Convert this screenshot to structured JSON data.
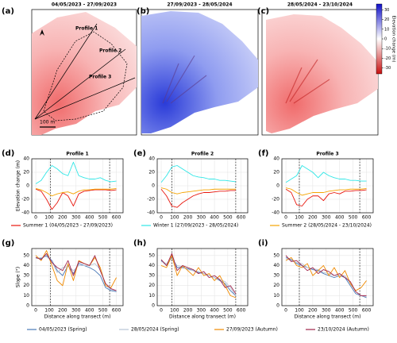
{
  "maps": [
    {
      "panel": "(a)",
      "title": "04/05/2023 - 27/09/2023",
      "labels": [
        "Profile 1",
        "Profile 2",
        "Profile 3"
      ],
      "scale": "100 m"
    },
    {
      "panel": "(b)",
      "title": "27/09/2023 - 28/05/2024"
    },
    {
      "panel": "(c)",
      "title": "28/05/2024 - 23/10/2024"
    }
  ],
  "colorbar": {
    "label": "Elevation change (m)",
    "lim": [
      -36,
      36
    ],
    "ticks": [
      30,
      20,
      10,
      0,
      -10,
      -20,
      -30
    ]
  },
  "chart_data": [
    {
      "type": "line",
      "panel": "(d)",
      "title": "Profile 1",
      "ylabel": "Elevation change (m)",
      "xlim": [
        -30,
        650
      ],
      "ylim": [
        -40,
        40
      ],
      "xticks": [
        0,
        100,
        200,
        300,
        400,
        500,
        600
      ],
      "yticks": [
        -40,
        -20,
        0,
        20,
        40
      ],
      "grid": true,
      "legend": "below",
      "vlines": [
        110,
        550
      ],
      "x": [
        0,
        40,
        80,
        120,
        160,
        200,
        240,
        280,
        320,
        360,
        400,
        440,
        480,
        520,
        560,
        600
      ],
      "series": [
        {
          "name": "Summer 1 (04/05/2023 - 27/09/2023)",
          "color": "#e8160c",
          "values": [
            -5,
            -8,
            -20,
            -35,
            -25,
            -10,
            -15,
            -30,
            -12,
            -8,
            -7,
            -6,
            -6,
            -6,
            -7,
            -6
          ]
        },
        {
          "name": "Winter 1 (27/09/2023 - 28/05/2024)",
          "color": "#2ee6e6",
          "values": [
            3,
            8,
            20,
            30,
            25,
            18,
            15,
            35,
            15,
            12,
            10,
            10,
            12,
            8,
            6,
            7
          ]
        },
        {
          "name": "Summer 2 (28/05/2024 - 23/10/2024)",
          "color": "#f5a400",
          "values": [
            -4,
            -6,
            -10,
            -15,
            -12,
            -10,
            -9,
            -12,
            -8,
            -6,
            -6,
            -5,
            -5,
            -5,
            -5,
            -4
          ]
        }
      ]
    },
    {
      "type": "line",
      "panel": "(e)",
      "title": "Profile 2",
      "xlim": [
        -30,
        650
      ],
      "ylim": [
        -40,
        40
      ],
      "xticks": [
        0,
        100,
        200,
        300,
        400,
        500,
        600
      ],
      "yticks": [
        -40,
        -20,
        0,
        20,
        40
      ],
      "grid": true,
      "vlines": [
        80,
        560
      ],
      "x": [
        0,
        40,
        80,
        120,
        160,
        200,
        240,
        280,
        320,
        360,
        400,
        440,
        480,
        520,
        560,
        600
      ],
      "series": [
        {
          "color": "#e8160c",
          "values": [
            -5,
            -15,
            -30,
            -32,
            -25,
            -20,
            -15,
            -12,
            -10,
            -10,
            -9,
            -8,
            -8,
            -7,
            -7,
            null
          ]
        },
        {
          "color": "#2ee6e6",
          "values": [
            5,
            15,
            28,
            30,
            25,
            20,
            15,
            13,
            12,
            10,
            10,
            8,
            8,
            7,
            6,
            null
          ]
        },
        {
          "color": "#f5a400",
          "values": [
            -3,
            -5,
            -10,
            -12,
            -10,
            -9,
            -8,
            -7,
            -6,
            -6,
            -5,
            -5,
            -5,
            -5,
            -5,
            null
          ]
        }
      ]
    },
    {
      "type": "line",
      "panel": "(f)",
      "title": "Profile 3",
      "xlim": [
        -30,
        650
      ],
      "ylim": [
        -40,
        40
      ],
      "xticks": [
        0,
        100,
        200,
        300,
        400,
        500,
        600
      ],
      "yticks": [
        -40,
        -20,
        0,
        20,
        40
      ],
      "grid": true,
      "vlines": [
        100,
        550
      ],
      "x": [
        0,
        40,
        80,
        120,
        160,
        200,
        240,
        280,
        320,
        360,
        400,
        440,
        480,
        520,
        560,
        600
      ],
      "series": [
        {
          "color": "#e8160c",
          "values": [
            -5,
            -10,
            -28,
            -30,
            -20,
            -15,
            -15,
            -22,
            -12,
            -10,
            -12,
            -8,
            -8,
            -7,
            -7,
            -6
          ]
        },
        {
          "color": "#2ee6e6",
          "values": [
            5,
            10,
            15,
            30,
            25,
            20,
            12,
            20,
            15,
            12,
            10,
            10,
            8,
            8,
            7,
            7
          ]
        },
        {
          "color": "#f5a400",
          "values": [
            -3,
            -5,
            -10,
            -14,
            -12,
            -10,
            -10,
            -10,
            -8,
            -7,
            -6,
            -6,
            -5,
            -5,
            -5,
            -4
          ]
        }
      ]
    },
    {
      "type": "line",
      "panel": "(g)",
      "ylabel": "Slope (°)",
      "xlabel": "Distance along transect (m)",
      "xlim": [
        -30,
        650
      ],
      "ylim": [
        0,
        57
      ],
      "xticks": [
        0,
        100,
        200,
        300,
        400,
        500,
        600
      ],
      "yticks": [
        0,
        10,
        20,
        30,
        40,
        50
      ],
      "grid": true,
      "legend": "below",
      "vlines": [
        110,
        550
      ],
      "x": [
        0,
        40,
        80,
        120,
        160,
        200,
        240,
        280,
        320,
        360,
        400,
        440,
        480,
        520,
        560,
        600
      ],
      "series": [
        {
          "name": "04/05/2023 (Spring)",
          "color": "#4a7ab8",
          "values": [
            48,
            47,
            50,
            45,
            35,
            30,
            40,
            32,
            42,
            40,
            38,
            35,
            30,
            18,
            15,
            14
          ]
        },
        {
          "name": "28/05/2024 (Spring)",
          "color": "#b8c4d6",
          "values": [
            47,
            48,
            49,
            44,
            33,
            38,
            39,
            35,
            40,
            40,
            40,
            42,
            36,
            20,
            16,
            15
          ]
        },
        {
          "name": "27/09/2023 (Autumn)",
          "color": "#f08a00",
          "values": [
            50,
            45,
            55,
            40,
            25,
            20,
            42,
            25,
            45,
            42,
            40,
            48,
            38,
            20,
            18,
            28
          ]
        },
        {
          "name": "23/10/2024 (Autumn)",
          "color": "#a0234a",
          "values": [
            48,
            46,
            52,
            43,
            38,
            35,
            45,
            30,
            44,
            42,
            40,
            50,
            35,
            22,
            17,
            15
          ]
        }
      ]
    },
    {
      "type": "line",
      "panel": "(h)",
      "xlabel": "Distance along transect (m)",
      "xlim": [
        -30,
        650
      ],
      "ylim": [
        0,
        57
      ],
      "xticks": [
        0,
        100,
        200,
        300,
        400,
        500,
        600
      ],
      "yticks": [
        0,
        10,
        20,
        30,
        40,
        50
      ],
      "grid": true,
      "vlines": [
        80,
        560
      ],
      "x": [
        0,
        40,
        80,
        120,
        160,
        200,
        240,
        280,
        320,
        360,
        400,
        440,
        480,
        520,
        560,
        600
      ],
      "series": [
        {
          "color": "#4a7ab8",
          "values": [
            45,
            40,
            48,
            38,
            38,
            37,
            35,
            33,
            32,
            30,
            28,
            25,
            22,
            15,
            10,
            null
          ]
        },
        {
          "color": "#b8c4d6",
          "values": [
            44,
            42,
            47,
            40,
            39,
            36,
            35,
            34,
            32,
            30,
            28,
            26,
            24,
            18,
            10,
            null
          ]
        },
        {
          "color": "#f08a00",
          "values": [
            40,
            38,
            50,
            30,
            40,
            35,
            30,
            38,
            30,
            32,
            25,
            30,
            20,
            10,
            8,
            null
          ]
        },
        {
          "color": "#a0234a",
          "values": [
            46,
            40,
            52,
            35,
            40,
            38,
            36,
            32,
            34,
            28,
            30,
            26,
            18,
            20,
            12,
            null
          ]
        }
      ]
    },
    {
      "type": "line",
      "panel": "(i)",
      "xlabel": "Distance along transect (m)",
      "xlim": [
        -30,
        650
      ],
      "ylim": [
        0,
        57
      ],
      "xticks": [
        0,
        100,
        200,
        300,
        400,
        500,
        600
      ],
      "yticks": [
        0,
        10,
        20,
        30,
        40,
        50
      ],
      "grid": true,
      "vlines": [
        100,
        550
      ],
      "x": [
        0,
        40,
        80,
        120,
        160,
        200,
        240,
        280,
        320,
        360,
        400,
        440,
        480,
        520,
        560,
        600
      ],
      "series": [
        {
          "color": "#4a7ab8",
          "values": [
            48,
            46,
            42,
            40,
            38,
            36,
            35,
            32,
            30,
            28,
            30,
            28,
            20,
            12,
            10,
            8
          ]
        },
        {
          "color": "#b8c4d6",
          "values": [
            47,
            45,
            43,
            42,
            38,
            37,
            36,
            33,
            32,
            30,
            30,
            30,
            22,
            14,
            10,
            9
          ]
        },
        {
          "color": "#f08a00",
          "values": [
            45,
            48,
            40,
            38,
            42,
            30,
            35,
            40,
            30,
            38,
            28,
            35,
            22,
            15,
            18,
            25
          ]
        },
        {
          "color": "#a0234a",
          "values": [
            50,
            44,
            45,
            40,
            35,
            38,
            32,
            36,
            34,
            30,
            32,
            28,
            24,
            14,
            10,
            10
          ]
        }
      ]
    }
  ]
}
